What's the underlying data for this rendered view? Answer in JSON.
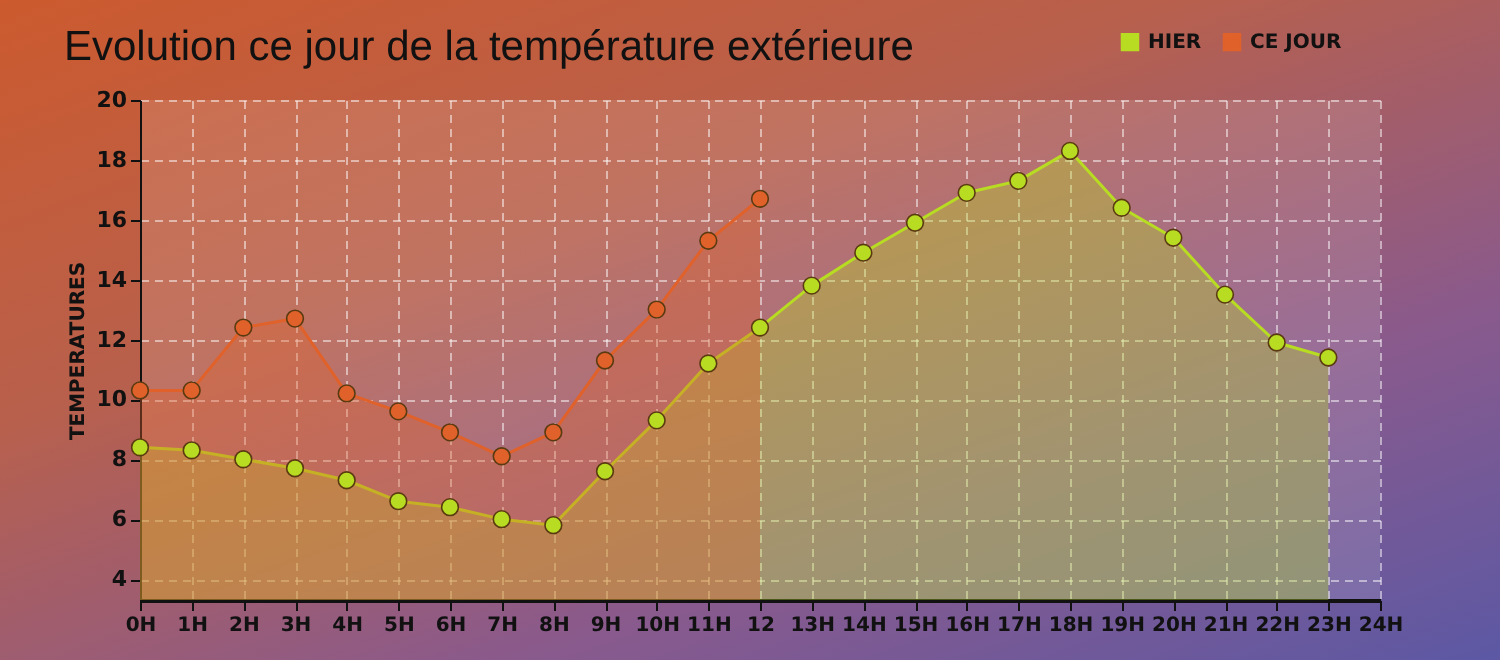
{
  "chart_data": {
    "type": "area",
    "title": "Evolution ce jour de la température extérieure",
    "ylabel": "TEMPERATURES",
    "categories": [
      "0H",
      "1H",
      "2H",
      "3H",
      "4H",
      "5H",
      "6H",
      "7H",
      "8H",
      "9H",
      "10H",
      "11H",
      "12",
      "13H",
      "14H",
      "15H",
      "16H",
      "17H",
      "18H",
      "19H",
      "20H",
      "21H",
      "22H",
      "23H",
      "24H"
    ],
    "series": [
      {
        "name": "HIER",
        "color": "#b8dc22",
        "values": [
          8.4,
          8.3,
          8.0,
          7.7,
          7.3,
          6.6,
          6.4,
          6.0,
          5.8,
          7.6,
          9.3,
          11.2,
          12.4,
          13.8,
          14.9,
          15.9,
          16.9,
          17.3,
          18.3,
          16.4,
          15.4,
          13.5,
          11.9,
          11.4,
          null
        ]
      },
      {
        "name": "CE JOUR",
        "color": "#e0612a",
        "values": [
          10.3,
          10.3,
          12.4,
          12.7,
          10.2,
          9.6,
          8.9,
          8.1,
          8.9,
          11.3,
          13.0,
          15.3,
          16.7,
          null,
          null,
          null,
          null,
          null,
          null,
          null,
          null,
          null,
          null,
          null,
          null
        ]
      }
    ],
    "ylim": [
      3.3,
      20
    ],
    "yticks": [
      4,
      6,
      8,
      10,
      12,
      14,
      16,
      18,
      20
    ],
    "grid": true,
    "legend": "top right",
    "marker": "circle"
  }
}
